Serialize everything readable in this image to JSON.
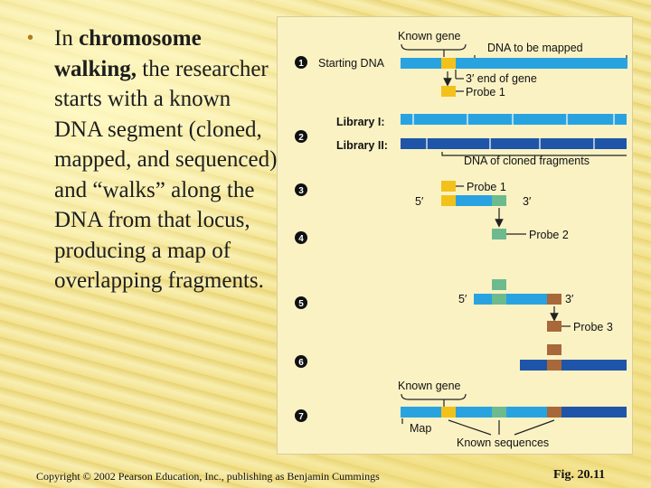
{
  "slide": {
    "bullet": {
      "pre": "In ",
      "term": "chromosome walking,",
      "post": " the researcher starts with a known DNA segment (cloned, mapped, and sequenced) and “walks” along the DNA from that locus, producing a map of overlapping fragments."
    },
    "copyright": "Copyright © 2002 Pearson Education, Inc., publishing as Benjamin Cummings",
    "fig_number": "Fig. 20.11"
  },
  "figure": {
    "steps": [
      "1",
      "2",
      "3",
      "4",
      "5",
      "6",
      "7"
    ],
    "labels": {
      "known_gene_top": "Known gene",
      "dna_to_be_mapped": "DNA to be mapped",
      "starting_dna": "Starting DNA",
      "three_prime_end": "3′ end of gene",
      "probe1_top": "Probe 1",
      "library1": "Library I:",
      "library2": "Library II:",
      "cloned_fragments": "DNA of cloned fragments",
      "probe1": "Probe 1",
      "five_prime_3": "5′",
      "three_prime_3": "3′",
      "probe2": "Probe 2",
      "five_prime_5": "5′",
      "three_prime_5": "3′",
      "probe3": "Probe 3",
      "known_gene_bottom": "Known gene",
      "map": "Map",
      "known_sequences": "Known sequences"
    },
    "colors": {
      "dna_light": "#29a3e0",
      "dna_dark": "#1f55a8",
      "probe_yellow": "#f2c21b",
      "probe_green": "#6dba8f",
      "probe_brown": "#a8683a"
    }
  }
}
